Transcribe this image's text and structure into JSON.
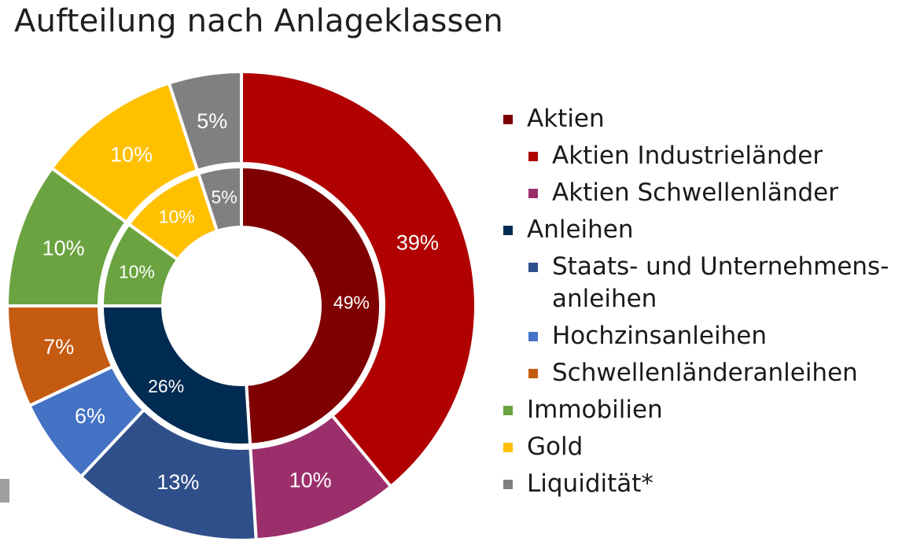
{
  "title": "Aufteilung nach Anlageklassen",
  "chart_data": {
    "type": "donut",
    "title": "Aufteilung nach Anlageklassen",
    "inner_ring": [
      {
        "name": "Aktien",
        "value": 49,
        "label": "49%",
        "color": "#7f0000"
      },
      {
        "name": "Anleihen",
        "value": 26,
        "label": "26%",
        "color": "#002b52"
      },
      {
        "name": "Immobilien",
        "value": 10,
        "label": "10%",
        "color": "#6aa340"
      },
      {
        "name": "Gold",
        "value": 10,
        "label": "10%",
        "color": "#ffc000"
      },
      {
        "name": "Liquidität*",
        "value": 5,
        "label": "5%",
        "color": "#808080"
      }
    ],
    "outer_ring": [
      {
        "name": "Aktien Industrieländer",
        "value": 39,
        "label": "39%",
        "color": "#b00000"
      },
      {
        "name": "Aktien Schwellenländer",
        "value": 10,
        "label": "10%",
        "color": "#9b2f6b"
      },
      {
        "name": "Staats- und Unternehmensanleihen",
        "value": 13,
        "label": "13%",
        "color": "#2f4f8a"
      },
      {
        "name": "Hochzinsanleihen",
        "value": 6,
        "label": "6%",
        "color": "#4472c4"
      },
      {
        "name": "Schwellenländeranleihen",
        "value": 7,
        "label": "7%",
        "color": "#c55a11"
      },
      {
        "name": "Immobilien",
        "value": 10,
        "label": "10%",
        "color": "#6aa340"
      },
      {
        "name": "Gold",
        "value": 10,
        "label": "10%",
        "color": "#ffc000"
      },
      {
        "name": "Liquidität*",
        "value": 5,
        "label": "5%",
        "color": "#808080"
      }
    ],
    "legend_position": "right"
  },
  "legend": [
    {
      "label": "Aktien",
      "level": 0,
      "color": "#7f0000"
    },
    {
      "label": "Aktien Industrieländer",
      "level": 1,
      "color": "#b00000"
    },
    {
      "label": "Aktien Schwellenländer",
      "level": 1,
      "color": "#9b2f6b"
    },
    {
      "label": "Anleihen",
      "level": 0,
      "color": "#002b52"
    },
    {
      "label": "Staats- und Unternehmens-",
      "continuation": "anleihen",
      "level": 1,
      "color": "#2f4f8a"
    },
    {
      "label": "Hochzinsanleihen",
      "level": 1,
      "color": "#4472c4"
    },
    {
      "label": "Schwellenländeranleihen",
      "level": 1,
      "color": "#c55a11"
    },
    {
      "label": "Immobilien",
      "level": 0,
      "color": "#6aa340"
    },
    {
      "label": "Gold",
      "level": 0,
      "color": "#ffc000"
    },
    {
      "label": "Liquidität*",
      "level": 0,
      "color": "#808080"
    }
  ]
}
